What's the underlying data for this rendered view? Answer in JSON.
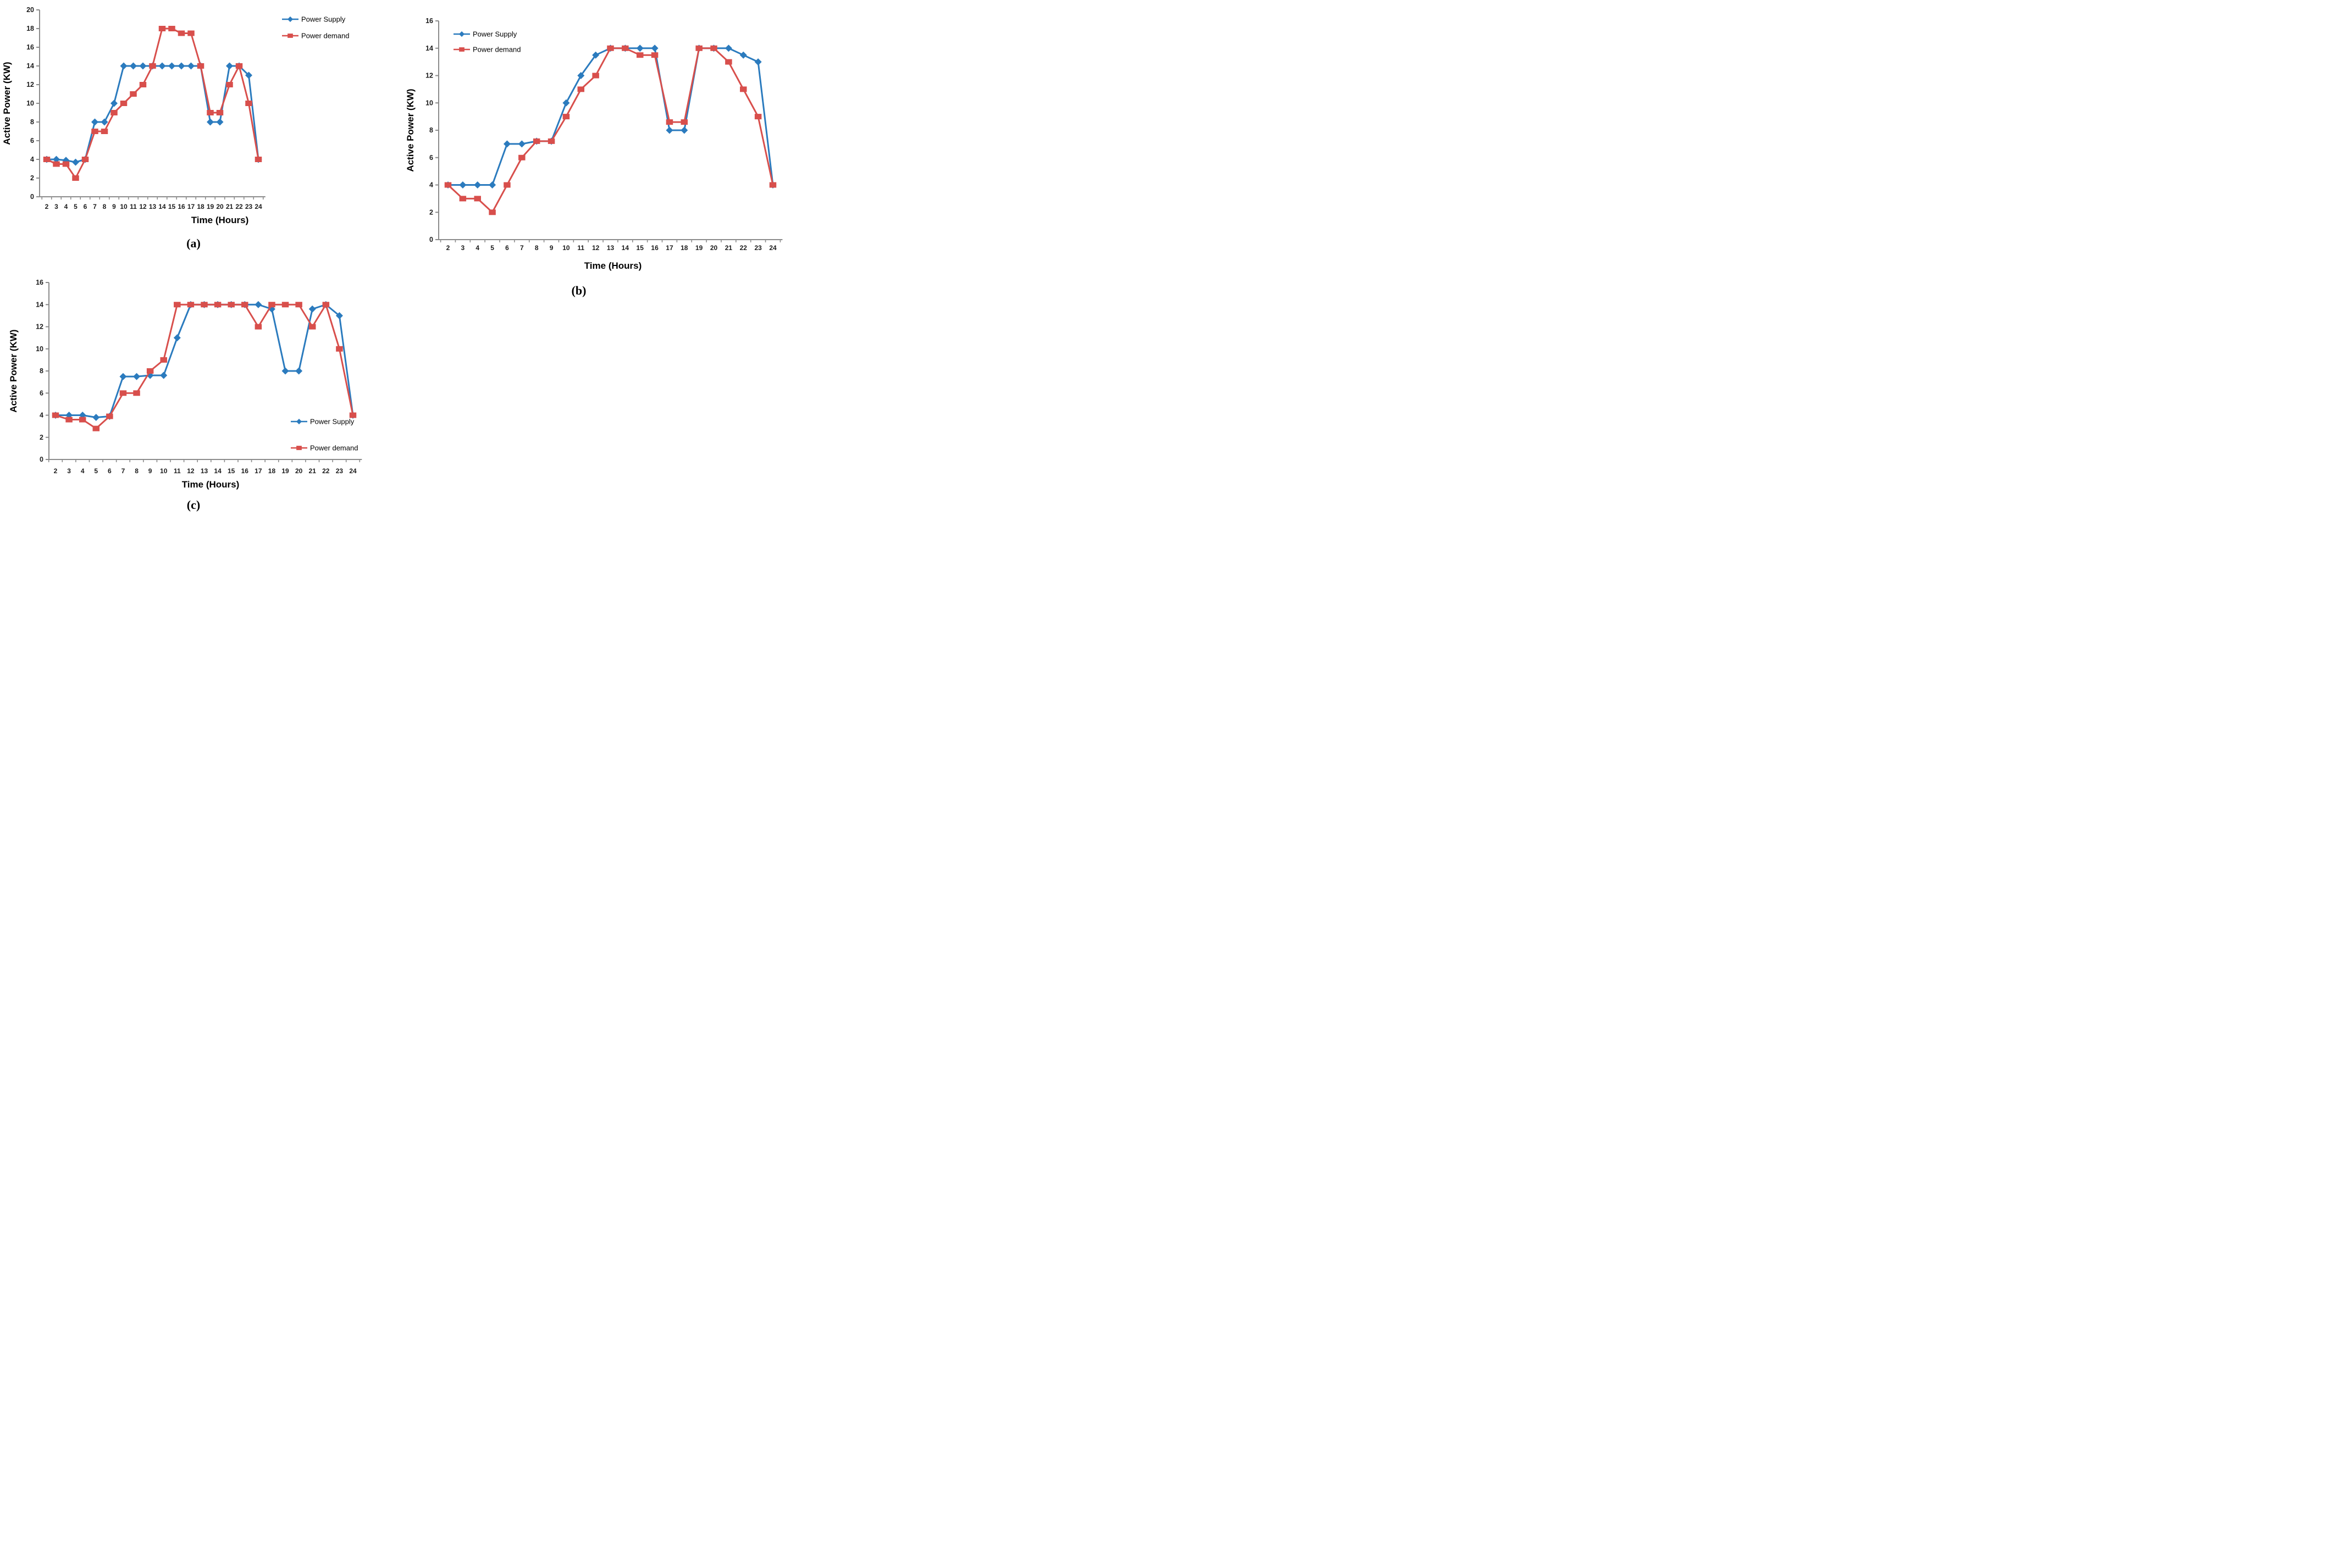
{
  "figure": {
    "description": "Three line charts comparing Power Supply and Power demand over a day",
    "series_names": [
      "Power Supply",
      "Power demand"
    ],
    "colors": {
      "power_supply": "#2B7BBE",
      "power_demand": "#D84F4C",
      "axis": "#8C8C8C",
      "tick_text": "#1B1B1B",
      "title_text": "#000000"
    }
  },
  "chart_data": [
    {
      "id": "a",
      "type": "line",
      "caption": "(a)",
      "xlabel": "Time (Hours)",
      "ylabel": "Active Power (KW)",
      "x": [
        2,
        3,
        4,
        5,
        6,
        7,
        8,
        9,
        10,
        11,
        12,
        13,
        14,
        15,
        16,
        17,
        18,
        19,
        20,
        21,
        22,
        23,
        24
      ],
      "ylim": [
        0,
        20
      ],
      "y_tick_step": 2,
      "grid": false,
      "legend_position": "top-right",
      "series": [
        {
          "name": "Power Supply",
          "marker": "diamond",
          "color": "#2B7BBE",
          "values": [
            4,
            4,
            3.9,
            3.7,
            4,
            8,
            8,
            10,
            14,
            14,
            14,
            14,
            14,
            14,
            14,
            14,
            14,
            8,
            8,
            14,
            14,
            13,
            4
          ]
        },
        {
          "name": "Power demand",
          "marker": "square",
          "color": "#D84F4C",
          "values": [
            4,
            3.5,
            3.5,
            2,
            4,
            7,
            7,
            9,
            10,
            11,
            12,
            14,
            18,
            18,
            17.5,
            17.5,
            14,
            9,
            9,
            12,
            14,
            10,
            4
          ]
        }
      ]
    },
    {
      "id": "b",
      "type": "line",
      "caption": "(b)",
      "xlabel": "Time (Hours)",
      "ylabel": "Active Power (KW)",
      "x": [
        2,
        3,
        4,
        5,
        6,
        7,
        8,
        9,
        10,
        11,
        12,
        13,
        14,
        15,
        16,
        17,
        18,
        19,
        20,
        21,
        22,
        23,
        24
      ],
      "ylim": [
        0,
        16
      ],
      "y_tick_step": 2,
      "grid": false,
      "legend_position": "top-left",
      "series": [
        {
          "name": "Power Supply",
          "marker": "diamond",
          "color": "#2B7BBE",
          "values": [
            4,
            4,
            4,
            4,
            7,
            7,
            7.2,
            7.2,
            10,
            12,
            13.5,
            14,
            14,
            14,
            14,
            8,
            8,
            14,
            14,
            14,
            13.5,
            13,
            4
          ]
        },
        {
          "name": "Power demand",
          "marker": "square",
          "color": "#D84F4C",
          "values": [
            4,
            3,
            3,
            2,
            4,
            6,
            7.2,
            7.2,
            9,
            11,
            12,
            14,
            14,
            13.5,
            13.5,
            8.6,
            8.6,
            14,
            14,
            13,
            11,
            9,
            4
          ]
        }
      ]
    },
    {
      "id": "c",
      "type": "line",
      "caption": "(c)",
      "xlabel": "Time (Hours)",
      "ylabel": "Active Power (KW)",
      "x": [
        2,
        3,
        4,
        5,
        6,
        7,
        8,
        9,
        10,
        11,
        12,
        13,
        14,
        15,
        16,
        17,
        18,
        19,
        20,
        21,
        22,
        23,
        24
      ],
      "ylim": [
        0,
        16
      ],
      "y_tick_step": 2,
      "grid": false,
      "legend_position": "bottom-right",
      "series": [
        {
          "name": "Power Supply",
          "marker": "diamond",
          "color": "#2B7BBE",
          "values": [
            4,
            4,
            4,
            3.8,
            3.9,
            7.5,
            7.5,
            7.6,
            7.6,
            11,
            14,
            14,
            14,
            14,
            14,
            14,
            13.6,
            8,
            8,
            13.6,
            14,
            13,
            4
          ]
        },
        {
          "name": "Power demand",
          "marker": "square",
          "color": "#D84F4C",
          "values": [
            4,
            3.6,
            3.6,
            2.8,
            3.9,
            6,
            6,
            8,
            9,
            14,
            14,
            14,
            14,
            14,
            14,
            12,
            14,
            14,
            14,
            12,
            14,
            10,
            4
          ]
        }
      ]
    }
  ]
}
